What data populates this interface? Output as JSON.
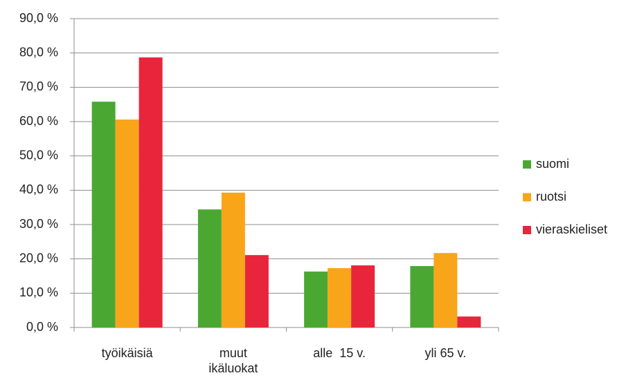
{
  "chart_data": {
    "type": "bar",
    "categories": [
      "työikäisiä",
      "muut ikäluokat",
      "alle  15 v.",
      "yli 65 v."
    ],
    "series": [
      {
        "name": "suomi",
        "color": "#4aa832",
        "values": [
          65.8,
          34.4,
          16.3,
          17.9
        ]
      },
      {
        "name": "ruotsi",
        "color": "#f9a51a",
        "values": [
          60.6,
          39.3,
          17.3,
          21.7
        ]
      },
      {
        "name": "vieraskieliset",
        "color": "#e8253a",
        "values": [
          78.7,
          21.1,
          18.1,
          3.2
        ]
      }
    ],
    "ylim": [
      0,
      90
    ],
    "yticks": [
      {
        "value": 0,
        "label": "0,0 %"
      },
      {
        "value": 10,
        "label": "10,0 %"
      },
      {
        "value": 20,
        "label": "20,0 %"
      },
      {
        "value": 30,
        "label": "30,0 %"
      },
      {
        "value": 40,
        "label": "40,0 %"
      },
      {
        "value": 50,
        "label": "50,0 %"
      },
      {
        "value": 60,
        "label": "60,0 %"
      },
      {
        "value": 70,
        "label": "70,0 %"
      },
      {
        "value": 80,
        "label": "80,0 %"
      },
      {
        "value": 90,
        "label": "90,0 %"
      }
    ],
    "grid": true,
    "legend": "right"
  }
}
